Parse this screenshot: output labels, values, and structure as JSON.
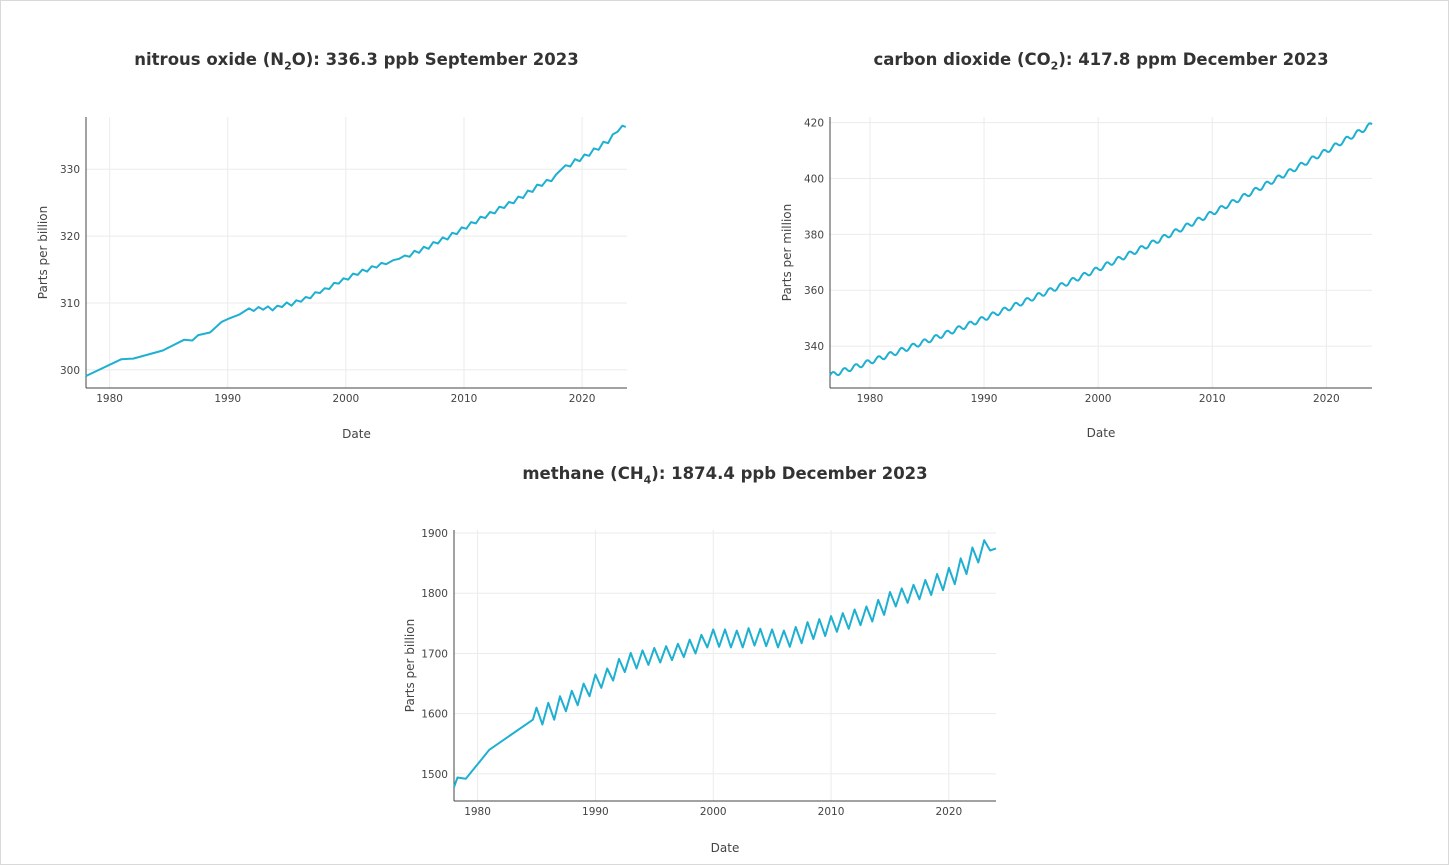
{
  "colors": {
    "series": "#1fb0d1"
  },
  "chart_data": [
    {
      "type": "line",
      "title_prefix": "nitrous oxide (N",
      "title_sub": "2",
      "title_suffix": "O): 336.3 ppb September 2023",
      "xlabel": "Date",
      "ylabel": "Parts per billion",
      "xlim": [
        1978,
        2023.8
      ],
      "ylim": [
        297.3,
        337.8
      ],
      "x_ticks": [
        1980,
        1990,
        2000,
        2010,
        2020
      ],
      "y_ticks": [
        300,
        310,
        320,
        330
      ],
      "grid": true,
      "series": [
        {
          "values": [
            [
              1978.0,
              299.1
            ],
            [
              1981.0,
              301.6
            ],
            [
              1982.0,
              301.7
            ],
            [
              1984.5,
              302.9
            ],
            [
              1986.3,
              304.5
            ],
            [
              1987.0,
              304.4
            ],
            [
              1987.5,
              305.2
            ],
            [
              1988.5,
              305.6
            ],
            [
              1989.5,
              307.2
            ],
            [
              1990.0,
              307.6
            ],
            [
              1991.0,
              308.3
            ],
            [
              1991.8,
              309.2
            ],
            [
              1992.2,
              308.8
            ],
            [
              1992.6,
              309.4
            ],
            [
              1993.0,
              309.0
            ],
            [
              1993.4,
              309.5
            ],
            [
              1993.8,
              308.9
            ],
            [
              1994.2,
              309.6
            ],
            [
              1994.6,
              309.4
            ],
            [
              1995.0,
              310.1
            ],
            [
              1995.4,
              309.6
            ],
            [
              1995.8,
              310.4
            ],
            [
              1996.2,
              310.2
            ],
            [
              1996.6,
              310.9
            ],
            [
              1997.0,
              310.7
            ],
            [
              1997.4,
              311.6
            ],
            [
              1997.8,
              311.5
            ],
            [
              1998.2,
              312.2
            ],
            [
              1998.6,
              312.1
            ],
            [
              1999.0,
              313.0
            ],
            [
              1999.4,
              312.9
            ],
            [
              1999.8,
              313.7
            ],
            [
              2000.2,
              313.5
            ],
            [
              2000.6,
              314.4
            ],
            [
              2001.0,
              314.2
            ],
            [
              2001.4,
              315.0
            ],
            [
              2001.8,
              314.7
            ],
            [
              2002.2,
              315.5
            ],
            [
              2002.6,
              315.3
            ],
            [
              2003.0,
              316.0
            ],
            [
              2003.4,
              315.8
            ],
            [
              2004.0,
              316.4
            ],
            [
              2004.5,
              316.6
            ],
            [
              2005.0,
              317.1
            ],
            [
              2005.4,
              316.9
            ],
            [
              2005.8,
              317.8
            ],
            [
              2006.2,
              317.5
            ],
            [
              2006.6,
              318.4
            ],
            [
              2007.0,
              318.1
            ],
            [
              2007.4,
              319.1
            ],
            [
              2007.8,
              318.9
            ],
            [
              2008.2,
              319.8
            ],
            [
              2008.6,
              319.5
            ],
            [
              2009.0,
              320.5
            ],
            [
              2009.4,
              320.3
            ],
            [
              2009.8,
              321.3
            ],
            [
              2010.2,
              321.1
            ],
            [
              2010.6,
              322.1
            ],
            [
              2011.0,
              321.9
            ],
            [
              2011.4,
              322.9
            ],
            [
              2011.8,
              322.7
            ],
            [
              2012.2,
              323.6
            ],
            [
              2012.6,
              323.4
            ],
            [
              2013.0,
              324.4
            ],
            [
              2013.4,
              324.2
            ],
            [
              2013.8,
              325.1
            ],
            [
              2014.2,
              324.9
            ],
            [
              2014.6,
              325.9
            ],
            [
              2015.0,
              325.7
            ],
            [
              2015.4,
              326.8
            ],
            [
              2015.8,
              326.6
            ],
            [
              2016.2,
              327.7
            ],
            [
              2016.6,
              327.5
            ],
            [
              2017.0,
              328.4
            ],
            [
              2017.4,
              328.2
            ],
            [
              2017.8,
              329.2
            ],
            [
              2018.2,
              329.9
            ],
            [
              2018.6,
              330.6
            ],
            [
              2019.0,
              330.4
            ],
            [
              2019.4,
              331.5
            ],
            [
              2019.8,
              331.2
            ],
            [
              2020.2,
              332.2
            ],
            [
              2020.6,
              332.0
            ],
            [
              2021.0,
              333.1
            ],
            [
              2021.4,
              332.9
            ],
            [
              2021.8,
              334.1
            ],
            [
              2022.2,
              333.9
            ],
            [
              2022.6,
              335.2
            ],
            [
              2023.0,
              335.6
            ],
            [
              2023.4,
              336.5
            ],
            [
              2023.7,
              336.3
            ]
          ]
        }
      ]
    },
    {
      "type": "line",
      "title_prefix": "carbon dioxide (CO",
      "title_sub": "2",
      "title_suffix": "): 417.8 ppm December 2023",
      "xlabel": "Date",
      "ylabel": "Parts per million",
      "xlim": [
        1976.5,
        2024.0
      ],
      "ylim": [
        325,
        422
      ],
      "x_ticks": [
        1980,
        1990,
        2000,
        2010,
        2020
      ],
      "y_ticks": [
        340,
        360,
        380,
        400,
        420
      ],
      "grid": true,
      "trend": {
        "start": 1976.5,
        "end": 2024.0,
        "base": 329.5,
        "linear": 1.36,
        "quad": 0.0112,
        "amplitude": 0.9,
        "cycles_per_year": 1,
        "step": 0.125
      }
    },
    {
      "type": "line",
      "title_prefix": "methane (CH",
      "title_sub": "4",
      "title_suffix": "): 1874.4 ppb December 2023",
      "xlabel": "Date",
      "ylabel": "Parts per billion",
      "xlim": [
        1978,
        2024
      ],
      "ylim": [
        1455,
        1905
      ],
      "x_ticks": [
        1980,
        1990,
        2000,
        2010,
        2020
      ],
      "y_ticks": [
        1500,
        1600,
        1700,
        1800,
        1900
      ],
      "grid": true,
      "series": [
        {
          "values": [
            [
              1978.0,
              1478
            ],
            [
              1978.3,
              1494
            ],
            [
              1979.0,
              1492
            ],
            [
              1980.0,
              1516
            ],
            [
              1981.0,
              1540
            ],
            [
              1984.7,
              1590
            ],
            [
              1985.0,
              1610
            ],
            [
              1985.5,
              1582
            ],
            [
              1986.0,
              1618
            ],
            [
              1986.5,
              1590
            ],
            [
              1987.0,
              1629
            ],
            [
              1987.5,
              1604
            ],
            [
              1988.0,
              1638
            ],
            [
              1988.5,
              1614
            ],
            [
              1989.0,
              1650
            ],
            [
              1989.5,
              1629
            ],
            [
              1990.0,
              1665
            ],
            [
              1990.5,
              1643
            ],
            [
              1991.0,
              1675
            ],
            [
              1991.5,
              1655
            ],
            [
              1992.0,
              1691
            ],
            [
              1992.5,
              1669
            ],
            [
              1993.0,
              1701
            ],
            [
              1993.5,
              1675
            ],
            [
              1994.0,
              1705
            ],
            [
              1994.5,
              1681
            ],
            [
              1995.0,
              1709
            ],
            [
              1995.5,
              1685
            ],
            [
              1996.0,
              1712
            ],
            [
              1996.5,
              1689
            ],
            [
              1997.0,
              1716
            ],
            [
              1997.5,
              1694
            ],
            [
              1998.0,
              1723
            ],
            [
              1998.5,
              1700
            ],
            [
              1999.0,
              1731
            ],
            [
              1999.5,
              1710
            ],
            [
              2000.0,
              1740
            ],
            [
              2000.5,
              1711
            ],
            [
              2001.0,
              1740
            ],
            [
              2001.5,
              1710
            ],
            [
              2002.0,
              1738
            ],
            [
              2002.5,
              1710
            ],
            [
              2003.0,
              1742
            ],
            [
              2003.5,
              1713
            ],
            [
              2004.0,
              1741
            ],
            [
              2004.5,
              1712
            ],
            [
              2005.0,
              1740
            ],
            [
              2005.5,
              1710
            ],
            [
              2006.0,
              1738
            ],
            [
              2006.5,
              1711
            ],
            [
              2007.0,
              1744
            ],
            [
              2007.5,
              1717
            ],
            [
              2008.0,
              1752
            ],
            [
              2008.5,
              1724
            ],
            [
              2009.0,
              1757
            ],
            [
              2009.5,
              1729
            ],
            [
              2010.0,
              1762
            ],
            [
              2010.5,
              1736
            ],
            [
              2011.0,
              1767
            ],
            [
              2011.5,
              1741
            ],
            [
              2012.0,
              1773
            ],
            [
              2012.5,
              1747
            ],
            [
              2013.0,
              1778
            ],
            [
              2013.5,
              1753
            ],
            [
              2014.0,
              1789
            ],
            [
              2014.5,
              1764
            ],
            [
              2015.0,
              1802
            ],
            [
              2015.5,
              1778
            ],
            [
              2016.0,
              1808
            ],
            [
              2016.5,
              1784
            ],
            [
              2017.0,
              1814
            ],
            [
              2017.5,
              1790
            ],
            [
              2018.0,
              1822
            ],
            [
              2018.5,
              1797
            ],
            [
              2019.0,
              1832
            ],
            [
              2019.5,
              1805
            ],
            [
              2020.0,
              1842
            ],
            [
              2020.5,
              1815
            ],
            [
              2021.0,
              1858
            ],
            [
              2021.5,
              1832
            ],
            [
              2022.0,
              1876
            ],
            [
              2022.5,
              1851
            ],
            [
              2023.0,
              1888
            ],
            [
              2023.5,
              1871
            ],
            [
              2024.0,
              1874.4
            ]
          ]
        }
      ]
    }
  ]
}
